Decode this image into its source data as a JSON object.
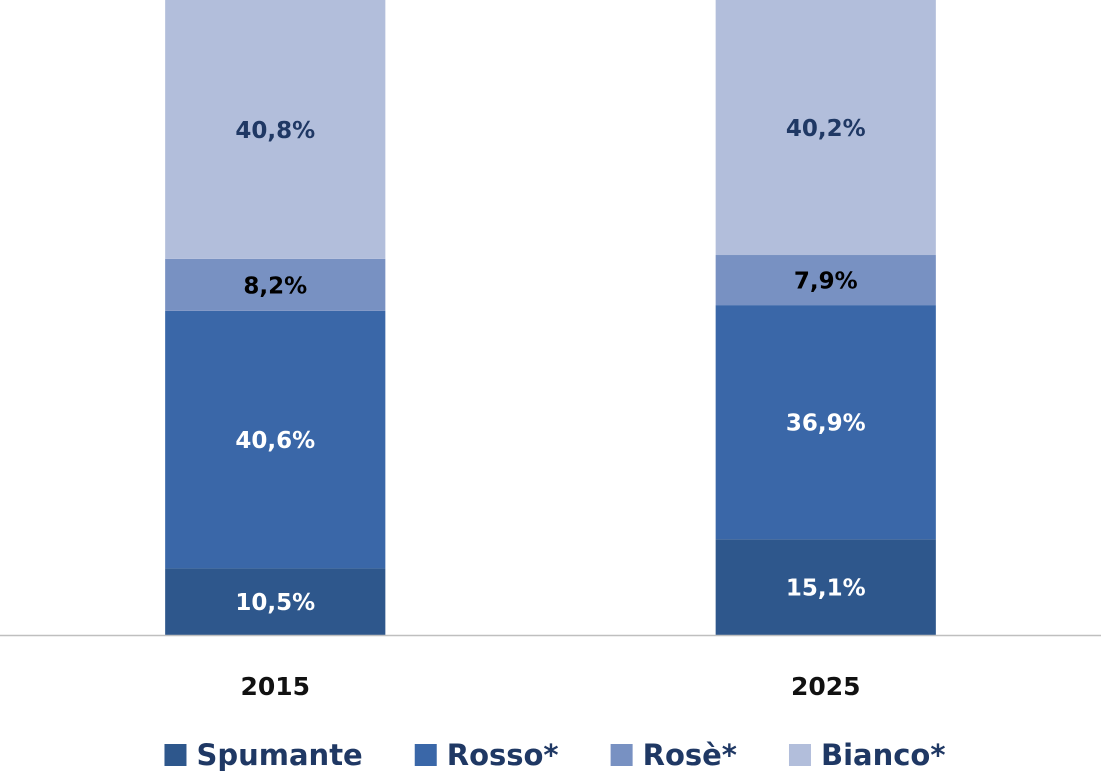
{
  "chart_data": {
    "type": "stacked_bar",
    "categories": [
      "2015",
      "2025"
    ],
    "series": [
      {
        "name": "Spumante",
        "color": "#2e578c",
        "label_color": "#ffffff",
        "values": [
          10.5,
          15.1
        ],
        "value_labels": [
          "10,5%",
          "15,1%"
        ]
      },
      {
        "name": "Rosso*",
        "color": "#3a67a8",
        "label_color": "#ffffff",
        "values": [
          40.6,
          36.9
        ],
        "value_labels": [
          "40,6%",
          "36,9%"
        ]
      },
      {
        "name": "Rosè*",
        "color": "#7891c2",
        "label_color": "#000000",
        "values": [
          8.2,
          7.9
        ],
        "value_labels": [
          "8,2%",
          "7,9%"
        ]
      },
      {
        "name": "Bianco*",
        "color": "#b2bedb",
        "label_color": "#1f3864",
        "values": [
          40.8,
          40.2
        ],
        "value_labels": [
          "40,8%",
          "40,2%"
        ]
      }
    ],
    "ylim": [
      0,
      100.1
    ]
  }
}
